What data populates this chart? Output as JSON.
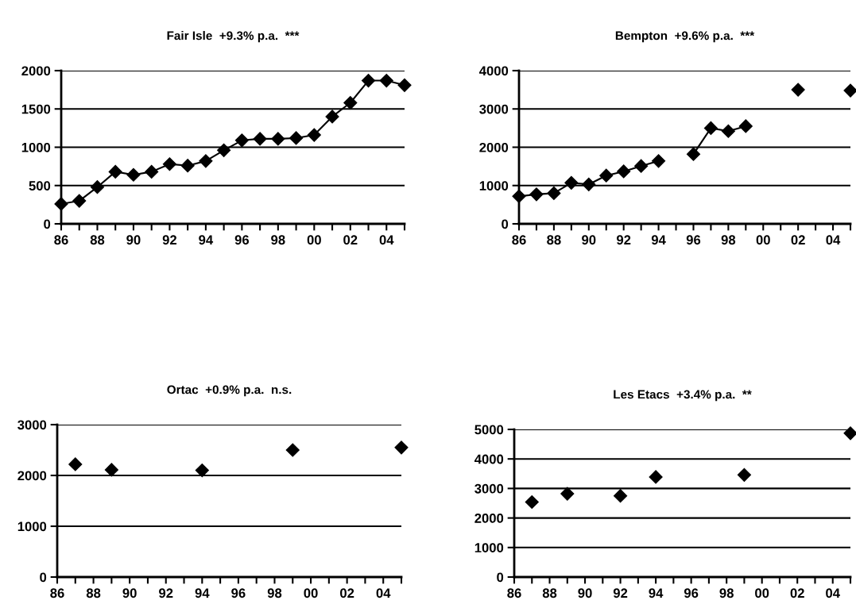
{
  "chart_data": [
    {
      "type": "line",
      "title": "Fair Isle  +9.3% p.a.  ***",
      "categories": [
        "86",
        null,
        "88",
        null,
        "90",
        null,
        "92",
        null,
        "94",
        null,
        "96",
        null,
        "98",
        null,
        "00",
        null,
        "02",
        null,
        "04",
        null
      ],
      "series": [
        {
          "color": "#000000",
          "values": [
            260,
            300,
            480,
            680,
            640,
            680,
            780,
            760,
            820,
            960,
            1090,
            1110,
            1110,
            1120,
            1160,
            1400,
            1580,
            1870,
            1870,
            1810
          ]
        }
      ],
      "ylim": [
        0,
        2000
      ],
      "yticks": [
        0,
        500,
        1000,
        1500,
        2000
      ],
      "grid": "y",
      "legend": false,
      "marker": "diamond",
      "line_style": "solid"
    },
    {
      "type": "line",
      "title": "Bempton  +9.6% p.a.  ***",
      "categories": [
        "86",
        null,
        "88",
        null,
        "90",
        null,
        "92",
        null,
        "94",
        null,
        "96",
        null,
        "98",
        null,
        "00",
        null,
        "02",
        null,
        "04",
        null
      ],
      "series": [
        {
          "color": "#000000",
          "values": [
            720,
            770,
            800,
            1070,
            1030,
            1260,
            1370,
            1510,
            1640,
            null,
            1820,
            2500,
            2420,
            2550,
            null,
            null,
            3500,
            null,
            null,
            3480
          ]
        }
      ],
      "ylim": [
        0,
        4000
      ],
      "yticks": [
        0,
        1000,
        2000,
        3000,
        4000
      ],
      "grid": "y",
      "legend": false,
      "marker": "diamond",
      "line_style": "solid"
    },
    {
      "type": "line",
      "title": "Ortac  +0.9% p.a.  n.s.",
      "categories": [
        "86",
        null,
        "88",
        null,
        "90",
        null,
        "92",
        null,
        "94",
        null,
        "96",
        null,
        "98",
        null,
        "00",
        null,
        "02",
        null,
        "04",
        null
      ],
      "series": [
        {
          "color": "#000000",
          "values": [
            null,
            2220,
            null,
            2110,
            null,
            null,
            null,
            null,
            2100,
            null,
            null,
            null,
            null,
            2500,
            null,
            null,
            null,
            null,
            null,
            2550
          ]
        }
      ],
      "ylim": [
        0,
        3000
      ],
      "yticks": [
        0,
        1000,
        2000,
        3000
      ],
      "grid": "y",
      "legend": false,
      "marker": "diamond",
      "line_style": "solid"
    },
    {
      "type": "line",
      "title": "Les Etacs  +3.4% p.a.  **",
      "categories": [
        "86",
        null,
        "88",
        null,
        "90",
        null,
        "92",
        null,
        "94",
        null,
        "96",
        null,
        "98",
        null,
        "00",
        null,
        "02",
        null,
        "04",
        null
      ],
      "series": [
        {
          "color": "#000000",
          "values": [
            null,
            2540,
            null,
            2820,
            null,
            null,
            2750,
            null,
            3390,
            null,
            null,
            null,
            null,
            3460,
            null,
            null,
            null,
            null,
            null,
            4870
          ]
        }
      ],
      "ylim": [
        0,
        5000
      ],
      "yticks": [
        0,
        1000,
        2000,
        3000,
        4000,
        5000
      ],
      "grid": "y",
      "legend": false,
      "marker": "diamond",
      "line_style": "solid"
    }
  ]
}
